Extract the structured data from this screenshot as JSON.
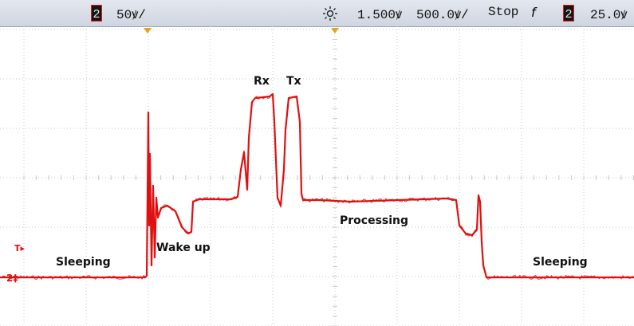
{
  "status": {
    "channel_badge": "2",
    "vdiv": "50ꝟ/",
    "delay": "1.500ꝟ",
    "tdiv": "500.0ꝟ/",
    "run_state": "Stop",
    "trigger_slope": "f",
    "trigger_channel": "2",
    "trigger_level": "25.0ꝟ"
  },
  "trace_color": "#e01010",
  "markers": {
    "trigger": "T",
    "channel": "2"
  },
  "annotations": {
    "sleeping_left": "Sleeping",
    "wake_up": "Wake up",
    "rx": "Rx",
    "tx": "Tx",
    "processing": "Processing",
    "sleeping_right": "Sleeping"
  },
  "icons": {
    "trigger_position": "triangle-down-icon",
    "acquisition": "sun-icon",
    "trigger_edge": "falling-edge-icon"
  }
}
